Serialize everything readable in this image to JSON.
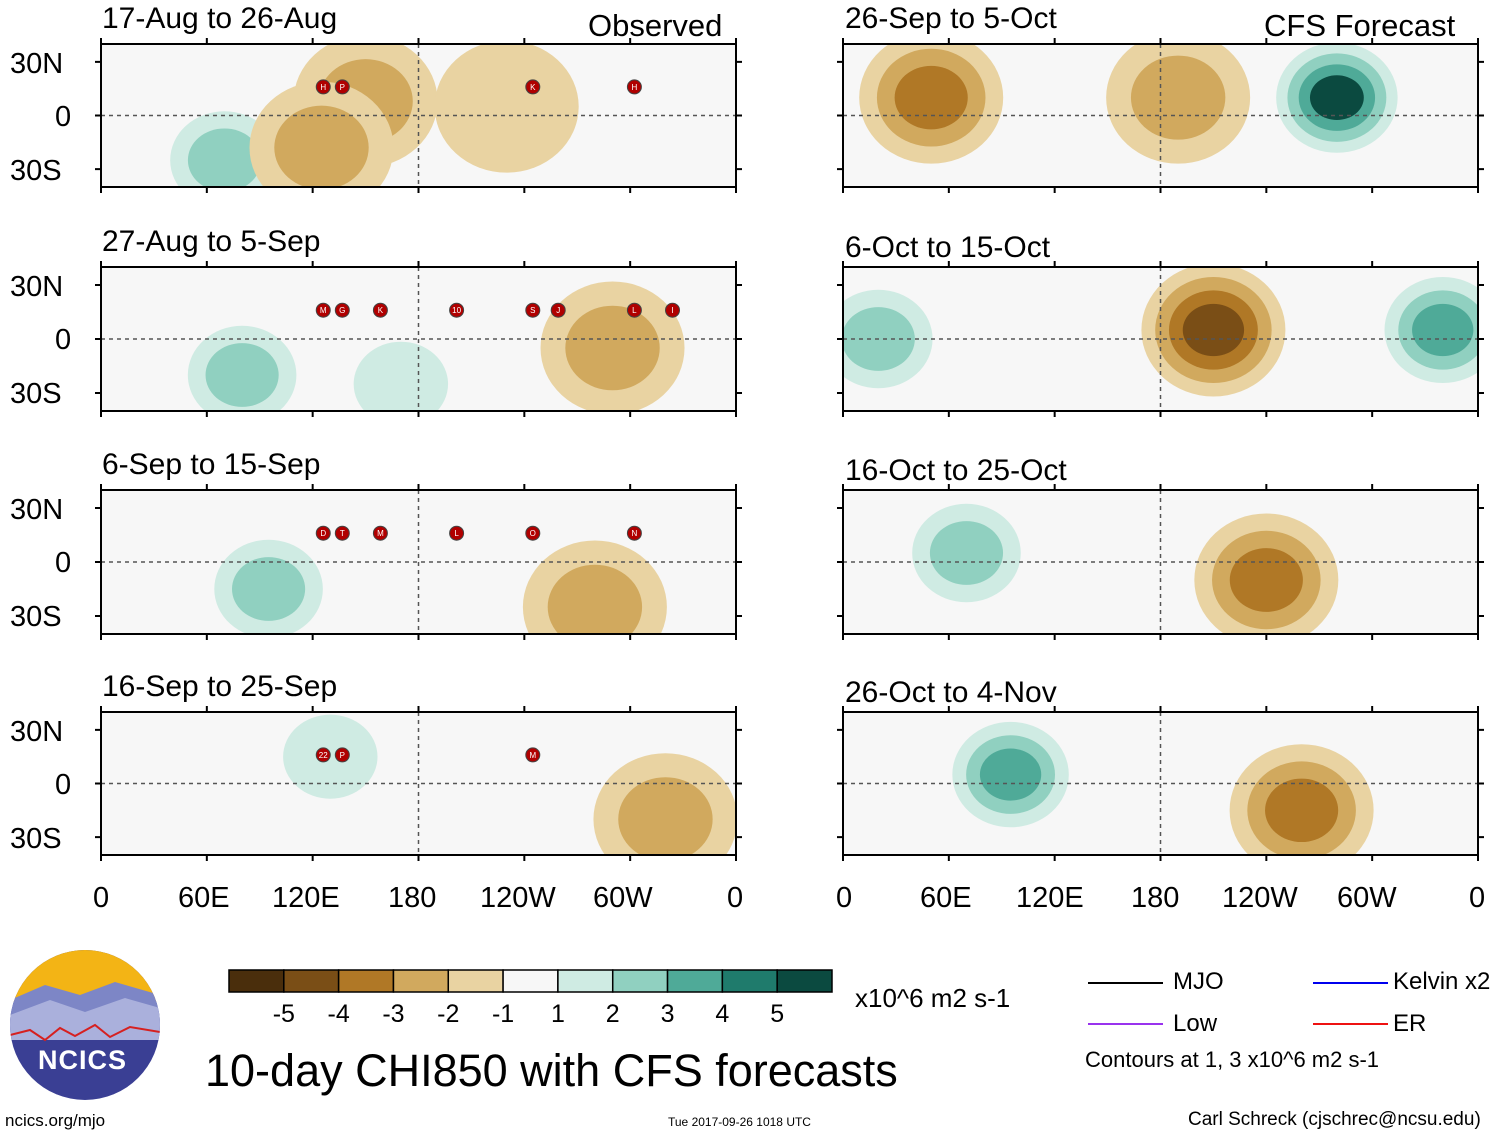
{
  "main_title": "10-day CHI850 with CFS forecasts",
  "corner_labels": {
    "observed": "Observed",
    "forecast": "CFS Forecast"
  },
  "lat_labels": [
    "30N",
    "0",
    "30S"
  ],
  "lon_labels": [
    "0",
    "60E",
    "120E",
    "180",
    "120W",
    "60W",
    "0"
  ],
  "colorbar": {
    "units": "x10^6 m2 s-1",
    "tick_labels": [
      "-5",
      "-4",
      "-3",
      "-2",
      "-1",
      "1",
      "2",
      "3",
      "4",
      "5"
    ],
    "colors": [
      "#4a2e0c",
      "#7a4e16",
      "#b07826",
      "#d1a95e",
      "#e9d3a2",
      "#f5efd8",
      "#f7f7f7",
      "#cfebe3",
      "#90d0c0",
      "#4faa98",
      "#1f7b6c",
      "#0b4a40"
    ]
  },
  "legend": {
    "items": [
      {
        "label": "MJO",
        "color": "#000000"
      },
      {
        "label": "Kelvin x2",
        "color": "#0000ee"
      },
      {
        "label": "Low",
        "color": "#9932ee"
      },
      {
        "label": "ER",
        "color": "#ee1111"
      }
    ],
    "note": "Contours at 1, 3 x10^6 m2 s-1"
  },
  "logo_text": "NCICS",
  "footer": {
    "url": "ncics.org/mjo",
    "timestamp": "Tue 2017-09-26 1018 UTC",
    "author": "Carl Schreck (cjschrec@ncsu.edu)"
  },
  "chart_data": [
    {
      "type": "heatmap",
      "column": "observed",
      "title": "17-Aug to 26-Aug",
      "storms": [
        "H",
        "P",
        "K",
        "H"
      ],
      "anomaly_regions": [
        {
          "lon": 70,
          "lat": -25,
          "value": 3.5
        },
        {
          "lon": 150,
          "lat": 8,
          "value": -2.5
        },
        {
          "lon": 125,
          "lat": -18,
          "value": -2.5
        },
        {
          "lon": 230,
          "lat": 5,
          "value": -1.5
        }
      ]
    },
    {
      "type": "heatmap",
      "column": "observed",
      "title": "27-Aug to 5-Sep",
      "storms": [
        "M",
        "G",
        "S",
        "L",
        "K",
        "10",
        "J",
        "I"
      ],
      "anomaly_regions": [
        {
          "lon": 80,
          "lat": -20,
          "value": 3.5
        },
        {
          "lon": 290,
          "lat": -5,
          "value": -2.5
        },
        {
          "lon": 170,
          "lat": -25,
          "value": 2
        }
      ]
    },
    {
      "type": "heatmap",
      "column": "observed",
      "title": "6-Sep to 15-Sep",
      "storms": [
        "D",
        "T",
        "O",
        "N",
        "M",
        "L"
      ],
      "anomaly_regions": [
        {
          "lon": 95,
          "lat": -15,
          "value": 3
        },
        {
          "lon": 280,
          "lat": -25,
          "value": -2.5
        }
      ]
    },
    {
      "type": "heatmap",
      "column": "observed",
      "title": "16-Sep to 25-Sep",
      "storms": [
        "22",
        "P",
        "M"
      ],
      "anomaly_regions": [
        {
          "lon": 130,
          "lat": 15,
          "value": 2
        },
        {
          "lon": 320,
          "lat": -20,
          "value": -2
        }
      ]
    },
    {
      "type": "heatmap",
      "column": "forecast",
      "title": "26-Sep to 5-Oct",
      "storms": [],
      "anomaly_regions": [
        {
          "lon": 280,
          "lat": 10,
          "value": 5
        },
        {
          "lon": 50,
          "lat": 10,
          "value": -3
        },
        {
          "lon": 190,
          "lat": 10,
          "value": -2
        }
      ]
    },
    {
      "type": "heatmap",
      "column": "forecast",
      "title": "6-Oct to 15-Oct",
      "storms": [],
      "anomaly_regions": [
        {
          "lon": 210,
          "lat": 5,
          "value": -4
        },
        {
          "lon": 340,
          "lat": 5,
          "value": 4
        },
        {
          "lon": 20,
          "lat": 0,
          "value": 3
        }
      ]
    },
    {
      "type": "heatmap",
      "column": "forecast",
      "title": "16-Oct to 25-Oct",
      "storms": [],
      "anomaly_regions": [
        {
          "lon": 70,
          "lat": 5,
          "value": 3.5
        },
        {
          "lon": 240,
          "lat": -10,
          "value": -3
        }
      ]
    },
    {
      "type": "heatmap",
      "column": "forecast",
      "title": "26-Oct to 4-Nov",
      "storms": [],
      "anomaly_regions": [
        {
          "lon": 95,
          "lat": 5,
          "value": 4.5
        },
        {
          "lon": 260,
          "lat": -15,
          "value": -3.5
        }
      ]
    }
  ]
}
